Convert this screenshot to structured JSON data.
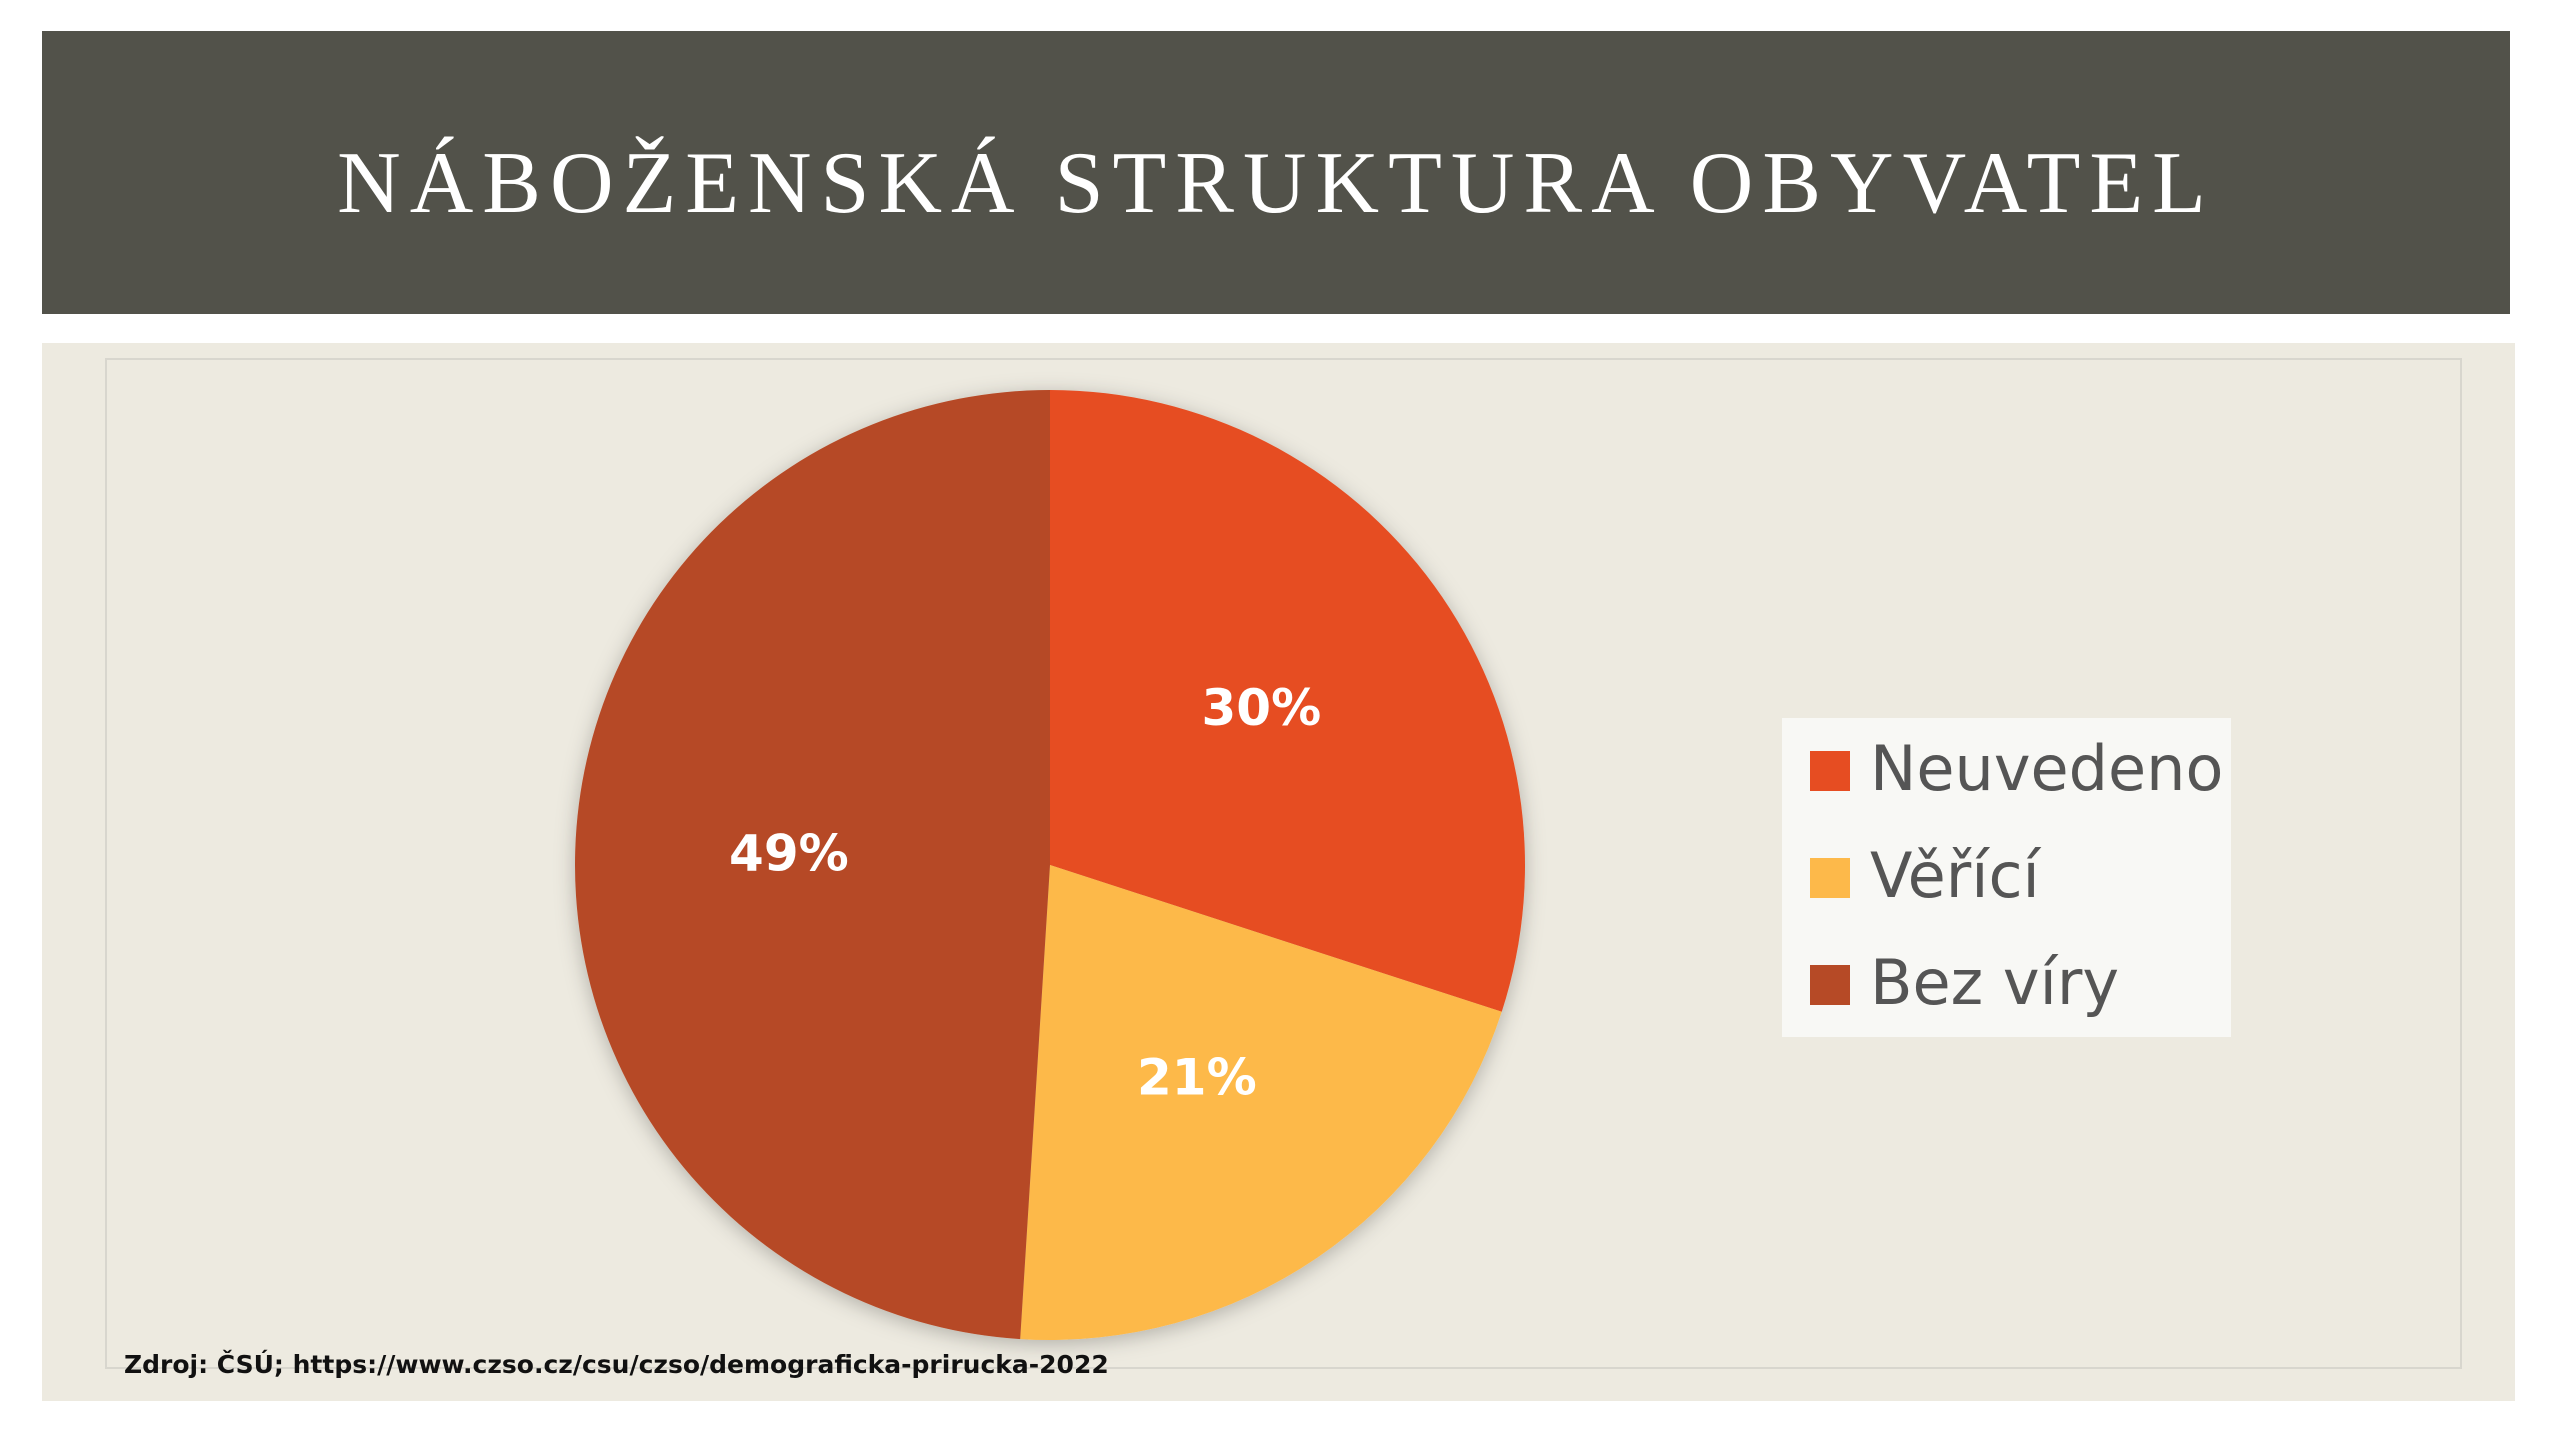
{
  "chart_data": {
    "type": "pie",
    "title": "NÁBOŽENSKÁ STRUKTURA OBYVATEL",
    "categories": [
      "Neuvedeno",
      "Věřící",
      "Bez víry"
    ],
    "values": [
      30,
      21,
      49
    ],
    "value_labels": [
      "30%",
      "21%",
      "49%"
    ],
    "colors": [
      "#e64d22",
      "#fdb94a",
      "#b64a26"
    ],
    "legend": "right",
    "source": "Zdroj: ČSÚ; https://www.czso.cz/csu/czso/demograficka-prirucka-2022"
  }
}
